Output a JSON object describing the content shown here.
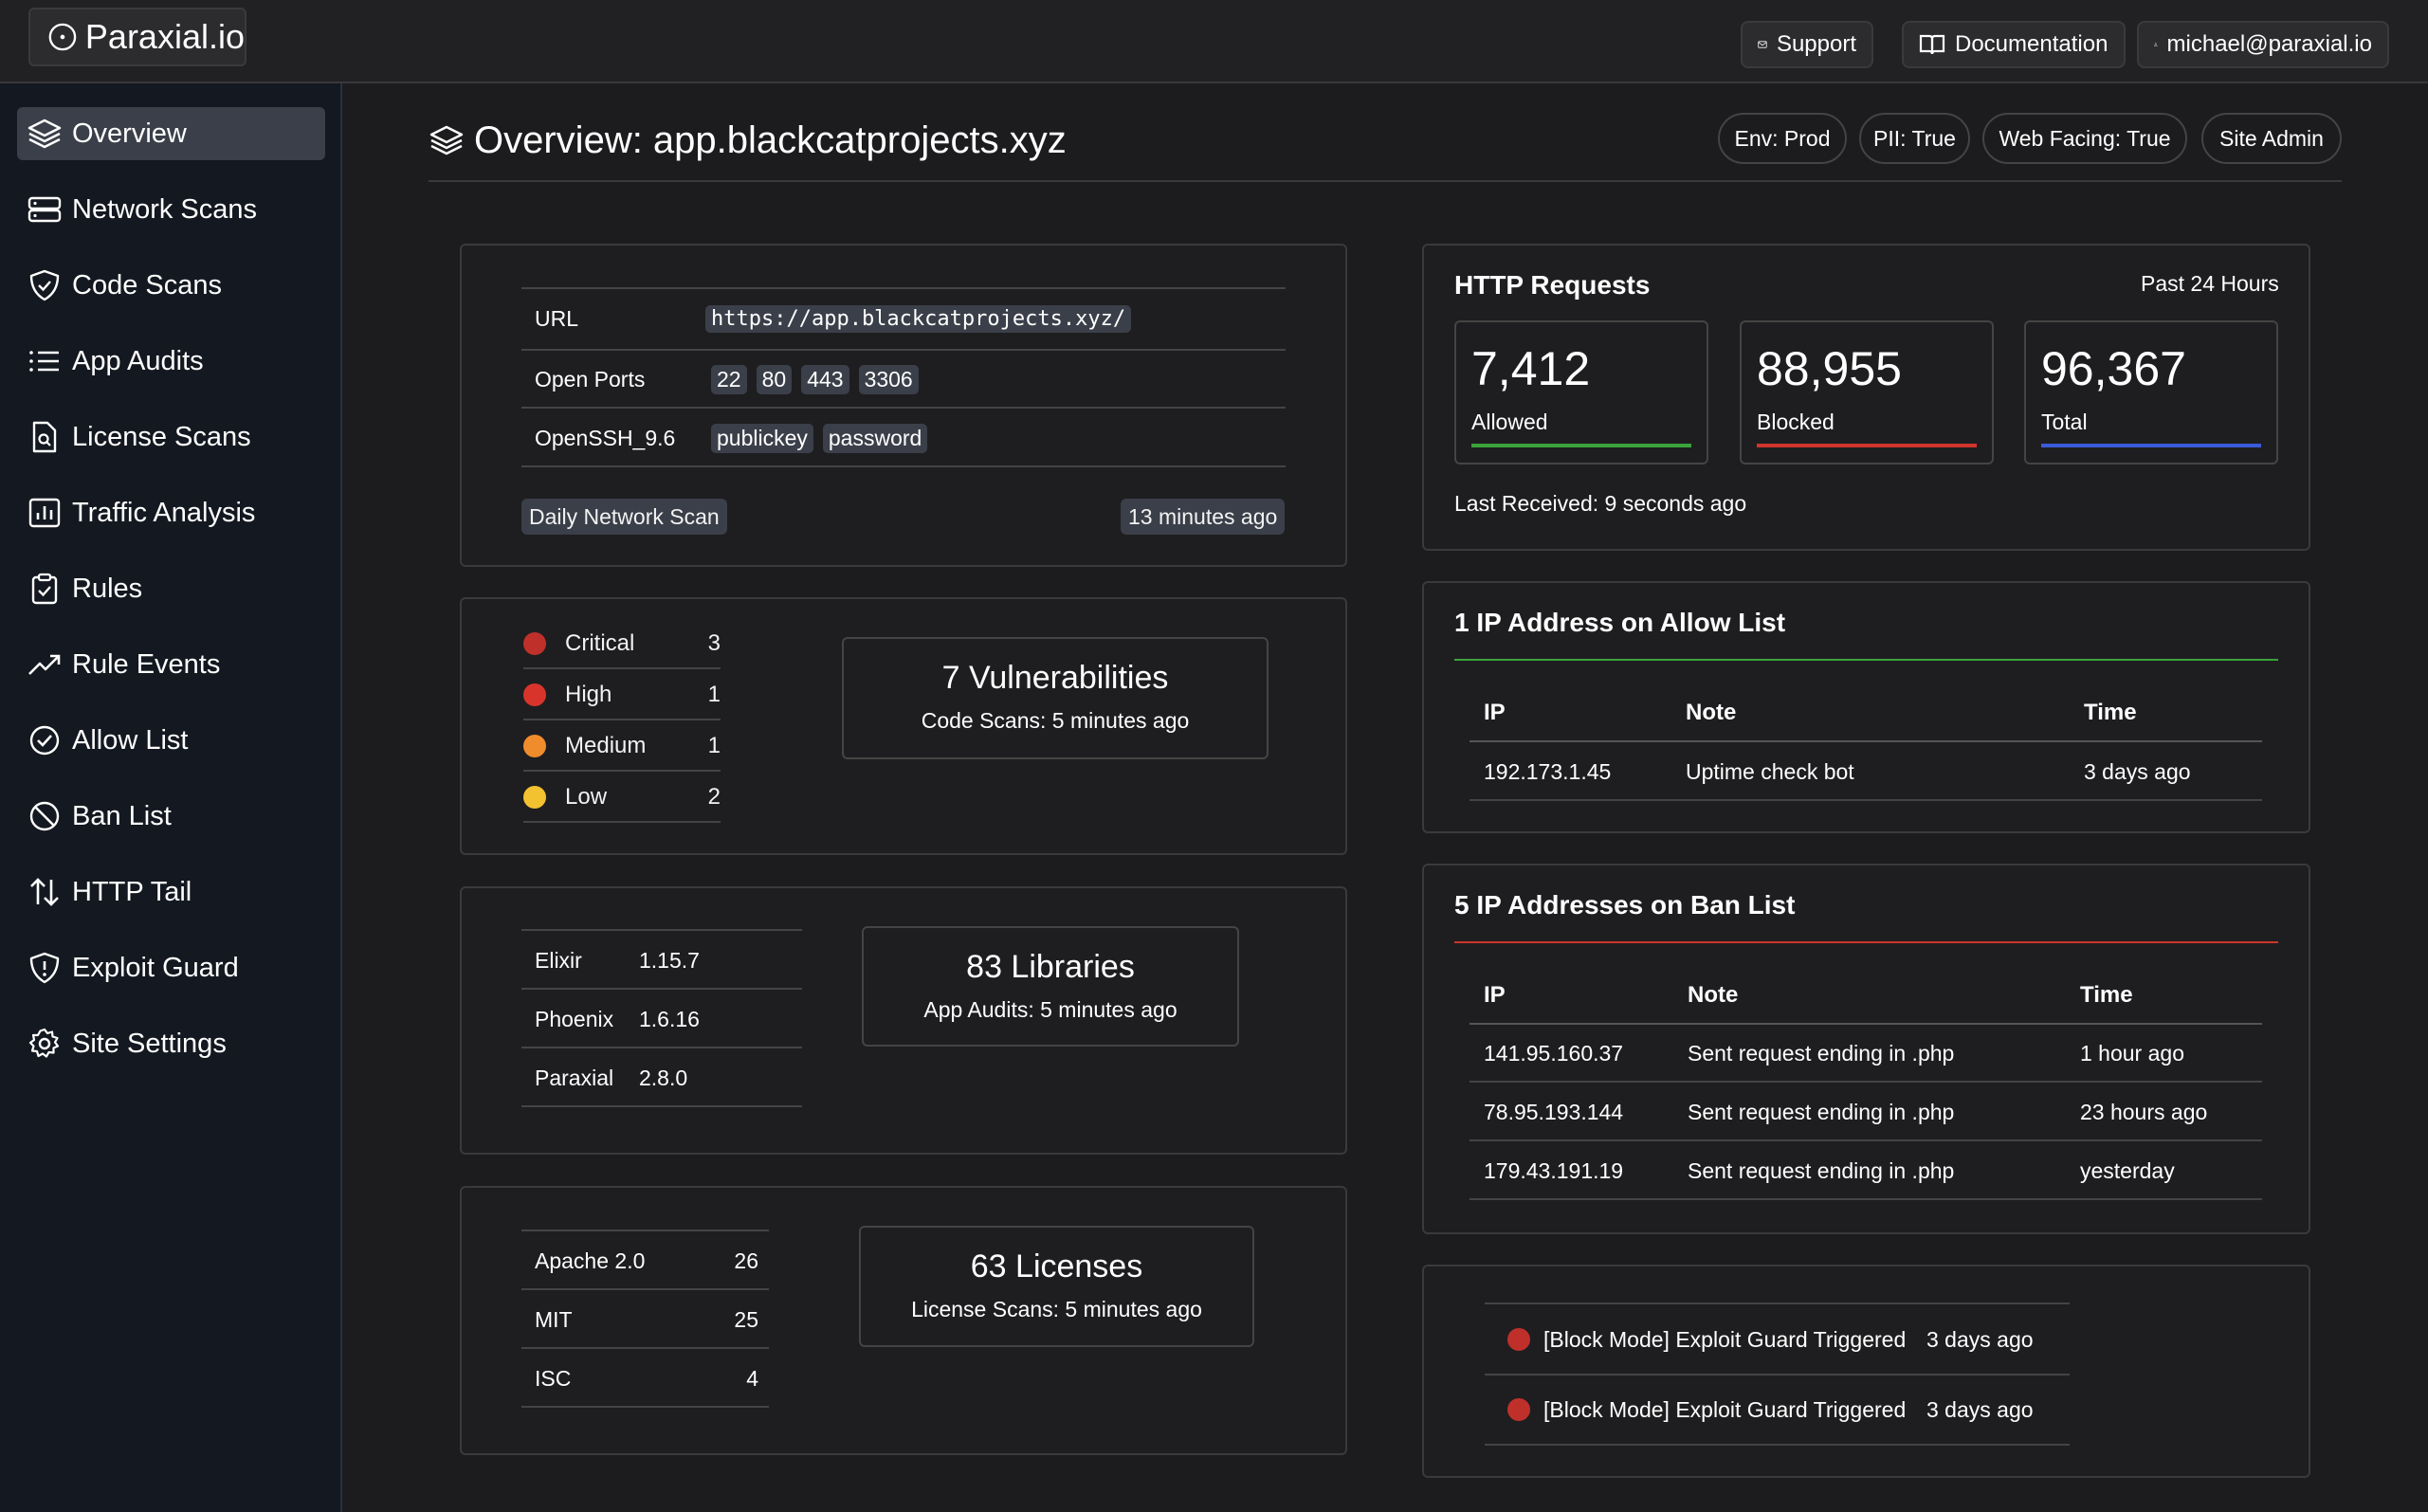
{
  "topbar": {
    "logo_text": "Paraxial.io",
    "support_label": "Support",
    "docs_label": "Documentation",
    "user_label": "michael@paraxial.io"
  },
  "sidebar": {
    "items": [
      {
        "label": "Overview",
        "icon": "layers-icon"
      },
      {
        "label": "Network Scans",
        "icon": "server-icon"
      },
      {
        "label": "Code Scans",
        "icon": "shield-check-icon"
      },
      {
        "label": "App Audits",
        "icon": "list-icon"
      },
      {
        "label": "License Scans",
        "icon": "file-search-icon"
      },
      {
        "label": "Traffic Analysis",
        "icon": "bar-chart-icon"
      },
      {
        "label": "Rules",
        "icon": "clipboard-check-icon"
      },
      {
        "label": "Rule Events",
        "icon": "trending-up-icon"
      },
      {
        "label": "Allow List",
        "icon": "check-circle-icon"
      },
      {
        "label": "Ban List",
        "icon": "ban-icon"
      },
      {
        "label": "HTTP Tail",
        "icon": "arrows-up-down-icon"
      },
      {
        "label": "Exploit Guard",
        "icon": "shield-alert-icon"
      },
      {
        "label": "Site Settings",
        "icon": "gear-icon"
      }
    ]
  },
  "header": {
    "title": "Overview: app.blackcatprojects.xyz",
    "pills": [
      "Env: Prod",
      "PII: True",
      "Web Facing: True",
      "Site Admin"
    ]
  },
  "network": {
    "url_label": "URL",
    "url_value": "https://app.blackcatprojects.xyz/",
    "ports_label": "Open Ports",
    "ports": [
      "22",
      "80",
      "443",
      "3306"
    ],
    "ssh_label": "OpenSSH_9.6",
    "ssh_methods": [
      "publickey",
      "password"
    ],
    "scan_name": "Daily Network Scan",
    "scan_time": "13 minutes ago"
  },
  "code_scans": {
    "severities": [
      {
        "name": "Critical",
        "count": "3",
        "color": "#c0302b"
      },
      {
        "name": "High",
        "count": "1",
        "color": "#d9342b"
      },
      {
        "name": "Medium",
        "count": "1",
        "color": "#f08c2c"
      },
      {
        "name": "Low",
        "count": "2",
        "color": "#f2c230"
      }
    ],
    "summary_title": "7 Vulnerabilities",
    "summary_sub": "Code Scans: 5 minutes ago"
  },
  "app_audits": {
    "rows": [
      {
        "name": "Elixir",
        "version": "1.15.7"
      },
      {
        "name": "Phoenix",
        "version": "1.6.16"
      },
      {
        "name": "Paraxial",
        "version": "2.8.0"
      }
    ],
    "summary_title": "83 Libraries",
    "summary_sub": "App Audits: 5 minutes ago"
  },
  "licenses": {
    "rows": [
      {
        "name": "Apache 2.0",
        "count": "26"
      },
      {
        "name": "MIT",
        "count": "25"
      },
      {
        "name": "ISC",
        "count": "4"
      }
    ],
    "summary_title": "63 Licenses",
    "summary_sub": "License Scans: 5 minutes ago"
  },
  "http": {
    "title": "HTTP Requests",
    "period": "Past 24 Hours",
    "stats": [
      {
        "value": "7,412",
        "label": "Allowed",
        "color": "#3aa33a"
      },
      {
        "value": "88,955",
        "label": "Blocked",
        "color": "#d0342c"
      },
      {
        "value": "96,367",
        "label": "Total",
        "color": "#3a5bd9"
      }
    ],
    "last_received": "Last Received: 9 seconds ago"
  },
  "allow_list": {
    "title": "1 IP Address on Allow List",
    "accent": "#3aa33a",
    "headers": [
      "IP",
      "Note",
      "Time"
    ],
    "rows": [
      {
        "ip": "192.173.1.45",
        "note": "Uptime check bot",
        "time": "3 days ago"
      }
    ]
  },
  "ban_list": {
    "title": "5 IP Addresses on Ban List",
    "accent": "#d0342c",
    "headers": [
      "IP",
      "Note",
      "Time"
    ],
    "rows": [
      {
        "ip": "141.95.160.37",
        "note": "Sent request ending in .php",
        "time": "1 hour ago"
      },
      {
        "ip": "78.95.193.144",
        "note": "Sent request ending in .php",
        "time": "23 hours ago"
      },
      {
        "ip": "179.43.191.19",
        "note": "Sent request ending in .php",
        "time": "yesterday"
      }
    ]
  },
  "exploit_guard": {
    "events": [
      {
        "text": "[Block Mode] Exploit Guard Triggered",
        "time": "3 days ago"
      },
      {
        "text": "[Block Mode] Exploit Guard Triggered",
        "time": "3 days ago"
      }
    ]
  }
}
